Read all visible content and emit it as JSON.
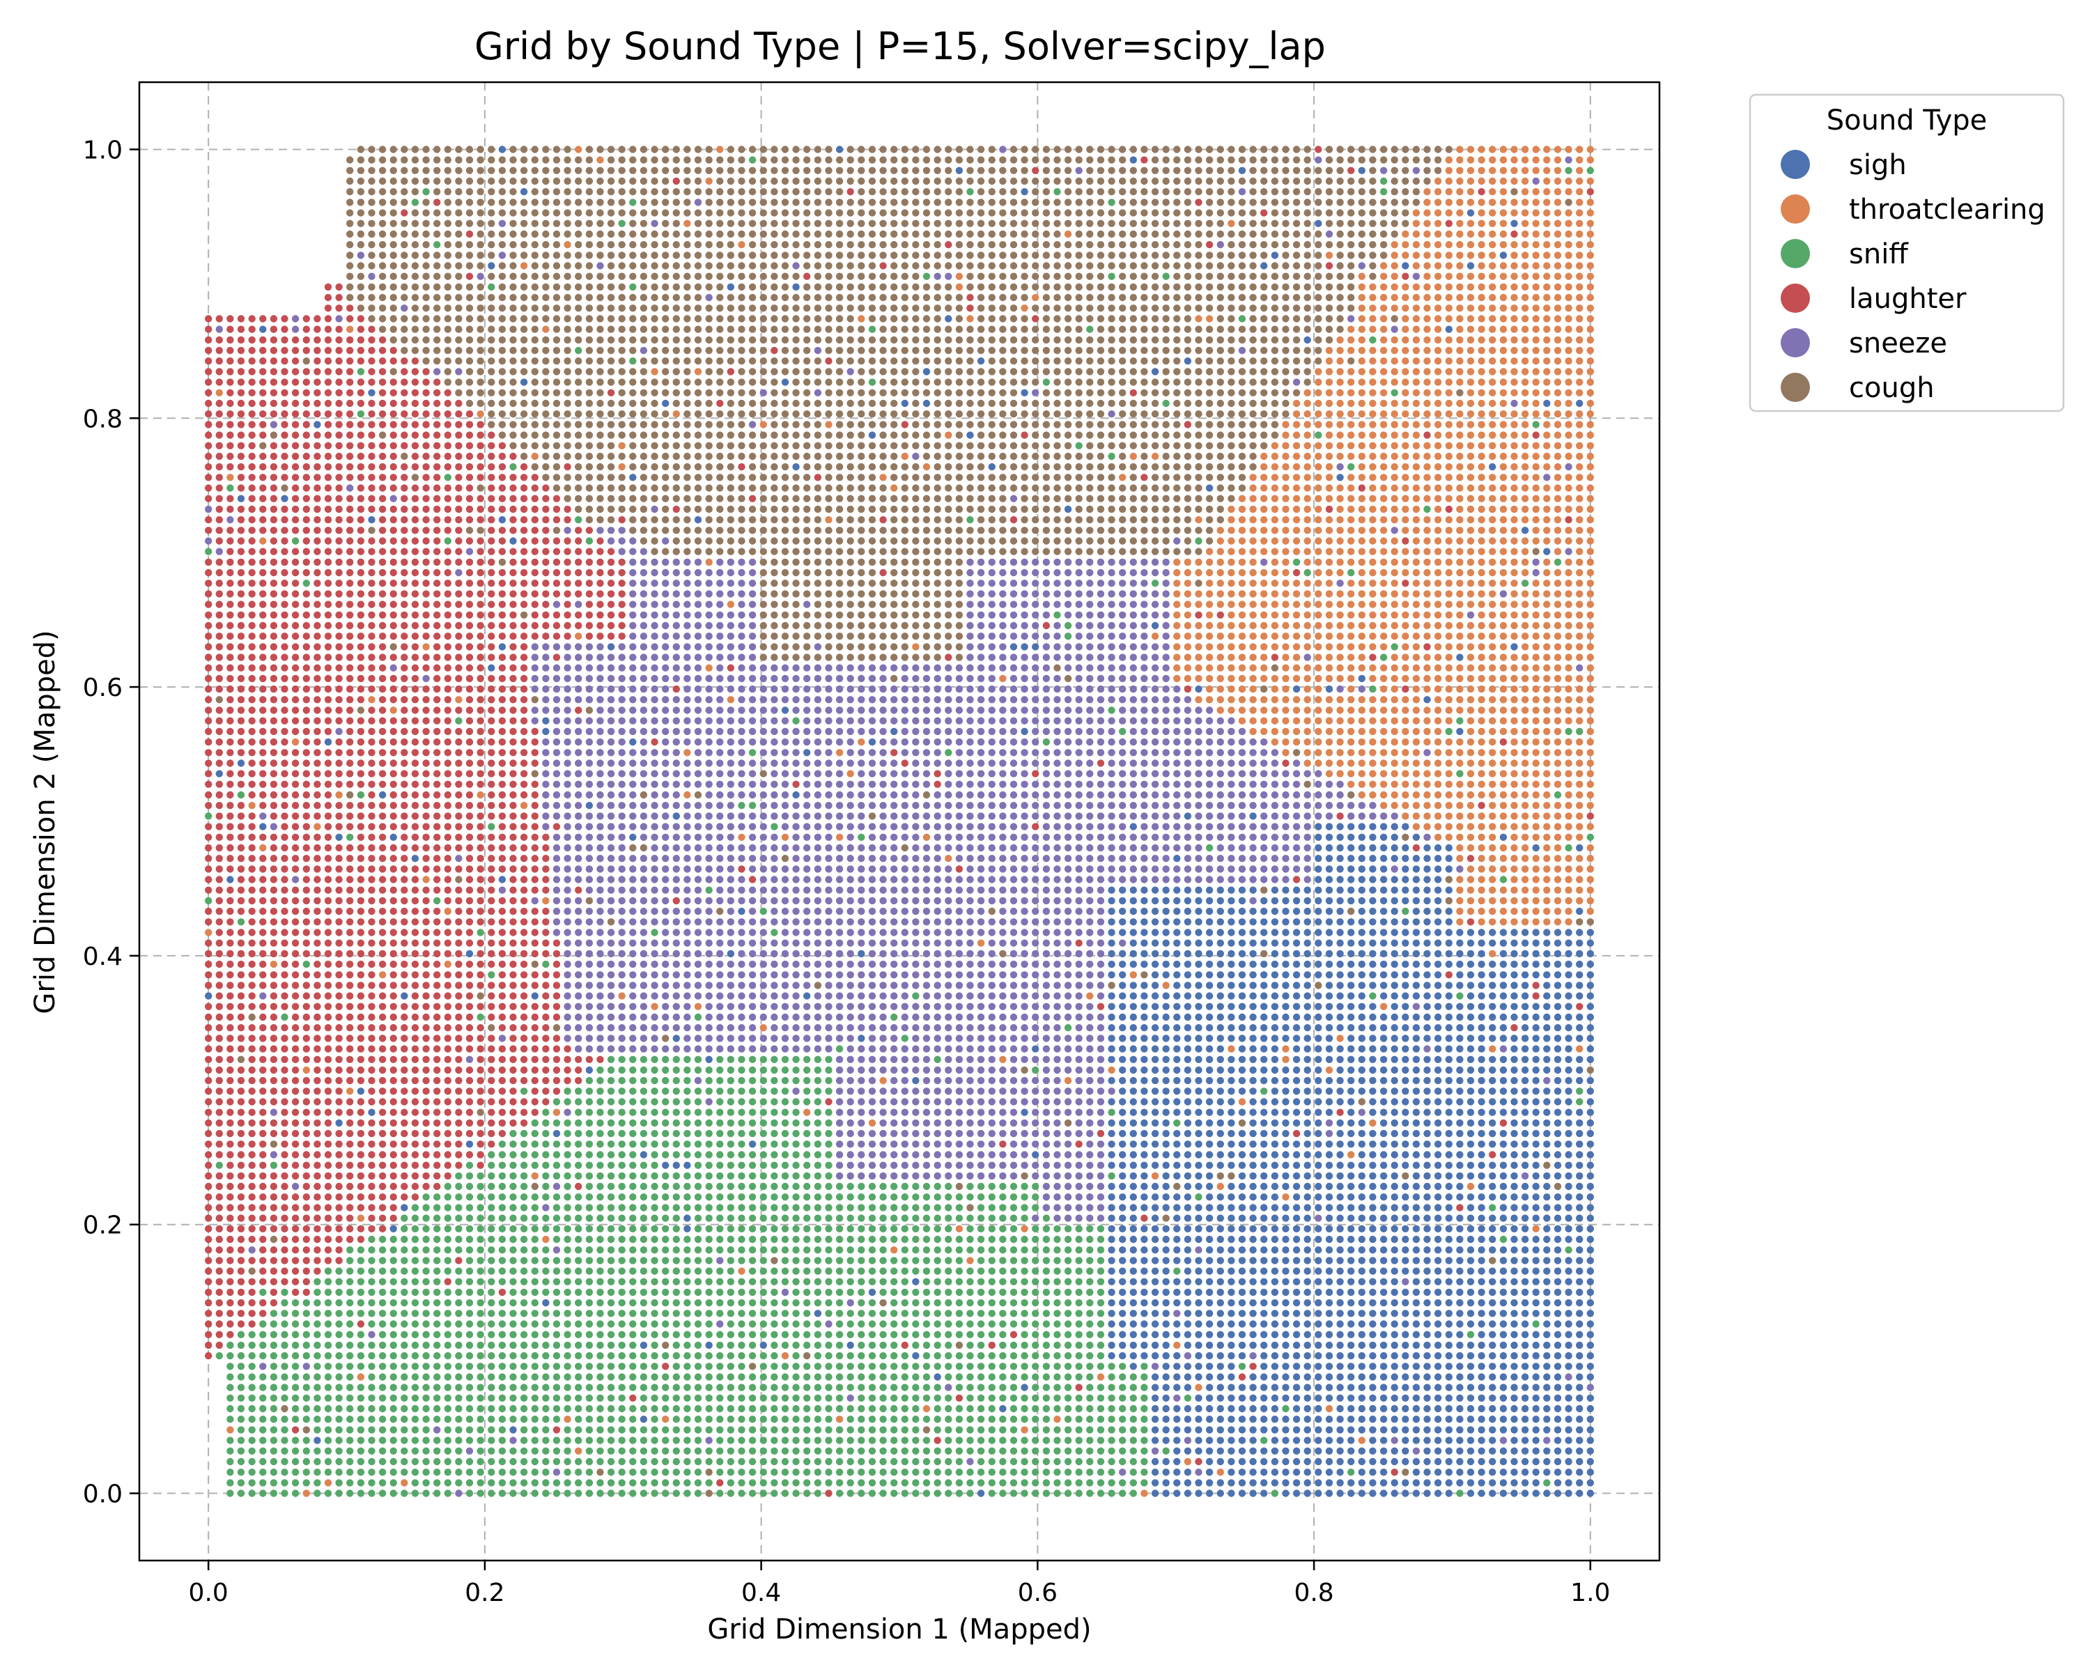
{
  "chart_data": {
    "type": "scatter",
    "title": "Grid by Sound Type | P=15, Solver=scipy_lap",
    "xlabel": "Grid Dimension 1 (Mapped)",
    "ylabel": "Grid Dimension 2 (Mapped)",
    "xlim": [
      -0.05,
      1.05
    ],
    "ylim": [
      -0.05,
      1.05
    ],
    "x_ticks": [
      "0.0",
      "0.2",
      "0.4",
      "0.6",
      "0.8",
      "1.0"
    ],
    "y_ticks": [
      "0.0",
      "0.2",
      "0.4",
      "0.6",
      "0.8",
      "1.0"
    ],
    "grid": true,
    "grid_style": "dashed",
    "legend": {
      "title": "Sound Type",
      "placement": "outside upper right"
    },
    "grid_points_per_axis": 128,
    "series": [
      {
        "name": "sigh",
        "color": "#4c72b0",
        "region": "lower-right, x 0.65–1.0, y 0–0.45"
      },
      {
        "name": "throatclearing",
        "color": "#dd8452",
        "region": "upper-right, x 0.75–1.0, y 0.45–1.0"
      },
      {
        "name": "sniff",
        "color": "#55a868",
        "region": "lower-left, x 0–0.65, y 0–0.33"
      },
      {
        "name": "laughter",
        "color": "#c44e52",
        "region": "left, x 0–0.3, y 0.1–0.9"
      },
      {
        "name": "sneeze",
        "color": "#8172b3",
        "region": "center, x 0.3–0.9, y 0.23–0.68"
      },
      {
        "name": "cough",
        "color": "#937860",
        "region": "top, x 0.1–0.9, y 0.7–1.0"
      }
    ]
  }
}
